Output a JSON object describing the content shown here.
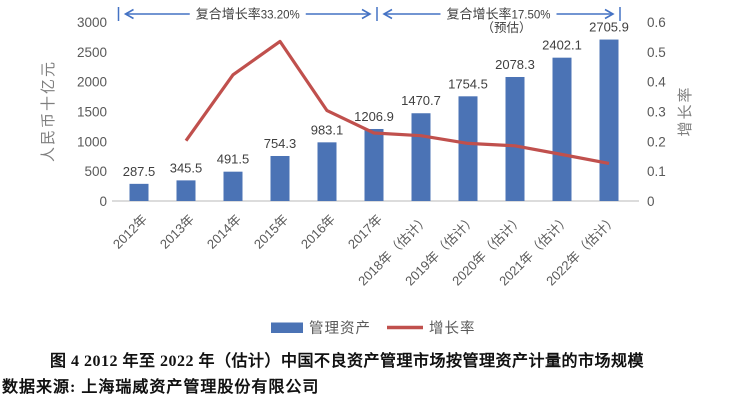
{
  "chart_data": {
    "type": "bar",
    "combo": "bar+line",
    "categories": [
      "2012年",
      "2013年",
      "2014年",
      "2015年",
      "2016年",
      "2017年",
      "2018年（估计）",
      "2019年（估计）",
      "2020年（估计）",
      "2021年（估计）",
      "2022年（估计）"
    ],
    "series": [
      {
        "name": "管理资产",
        "type": "bar",
        "axis": "left",
        "values": [
          287.5,
          345.5,
          491.5,
          754.3,
          983.1,
          1206.9,
          1470.7,
          1754.5,
          2078.3,
          2402.1,
          2705.9
        ],
        "labels": [
          "287.5",
          "345.5",
          "491.5",
          "754.3",
          "983.1",
          "1206.9",
          "1470.7",
          "1754.5",
          "2078.3",
          "2402.1",
          "2705.9"
        ]
      },
      {
        "name": "增长率",
        "type": "line",
        "axis": "right",
        "values": [
          null,
          0.202,
          0.423,
          0.535,
          0.303,
          0.228,
          0.219,
          0.193,
          0.185,
          0.156,
          0.126
        ]
      }
    ],
    "left_axis": {
      "title": "人民币十亿元",
      "min": 0,
      "max": 3000,
      "ticks": [
        "0",
        "500",
        "1000",
        "1500",
        "2000",
        "2500",
        "3000"
      ]
    },
    "right_axis": {
      "title": "增长率",
      "min": 0,
      "max": 0.6,
      "ticks": [
        "0",
        "0.1",
        "0.2",
        "0.3",
        "0.4",
        "0.5",
        "0.6"
      ]
    },
    "annotations": [
      {
        "label": "复合增长率",
        "value": "33.20%",
        "sub": "",
        "from_category": 0,
        "to_category": 5
      },
      {
        "label": "复合增长率",
        "value": "17.50%",
        "sub": "（预估）",
        "from_category": 5,
        "to_category": 10
      }
    ],
    "legend": [
      {
        "label": "管理资产",
        "swatch": "bar"
      },
      {
        "label": "增长率",
        "swatch": "line"
      }
    ],
    "grid": "off",
    "legend_position": "bottom"
  },
  "colors": {
    "bar": "#4b73b5",
    "line": "#c0504d",
    "arrow": "#4472c4",
    "tick_text": "#595959",
    "axis_title": "#7f7f7f",
    "data_label": "#404040",
    "axis_line": "#c6c6c6",
    "legend_text": "#595959"
  },
  "caption": {
    "line1": "图 4 2012 年至 2022 年（估计）中国不良资产管理市场按管理资产计量的市场规模",
    "line2": "数据来源: 上海瑞威资产管理股份有限公司"
  }
}
